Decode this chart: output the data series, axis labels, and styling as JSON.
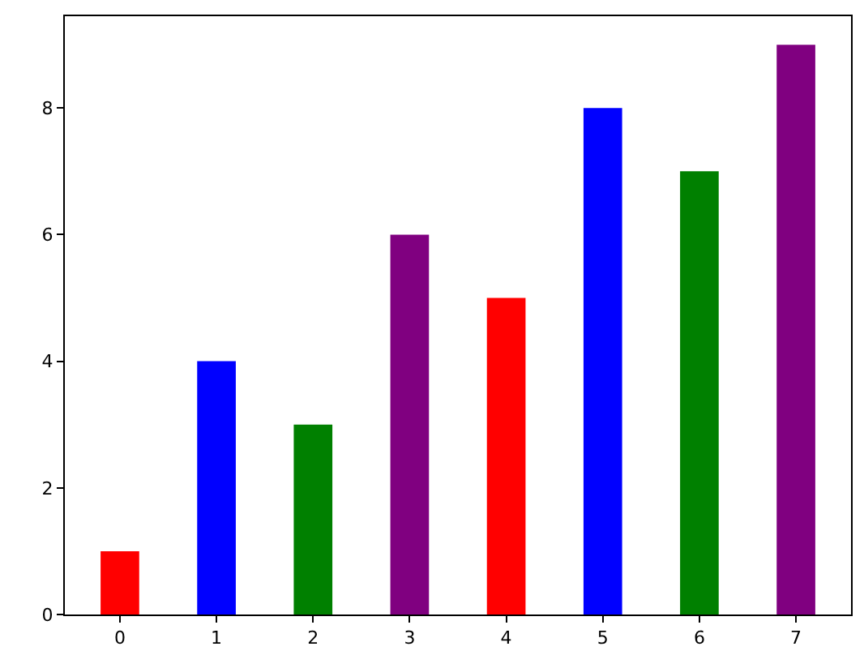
{
  "chart_data": {
    "type": "bar",
    "x": [
      0,
      1,
      2,
      3,
      4,
      5,
      6,
      7
    ],
    "values": [
      1,
      4,
      3,
      6,
      5,
      8,
      7,
      9
    ],
    "colors": [
      "#ff0000",
      "#0000ff",
      "#008000",
      "#800080",
      "#ff0000",
      "#0000ff",
      "#008000",
      "#800080"
    ],
    "xlim": [
      -0.57,
      7.57
    ],
    "xticks": [
      0,
      1,
      2,
      3,
      4,
      5,
      6,
      7
    ],
    "ylim": [
      0,
      9.45
    ],
    "yticks": [
      0,
      2,
      4,
      6,
      8
    ]
  }
}
